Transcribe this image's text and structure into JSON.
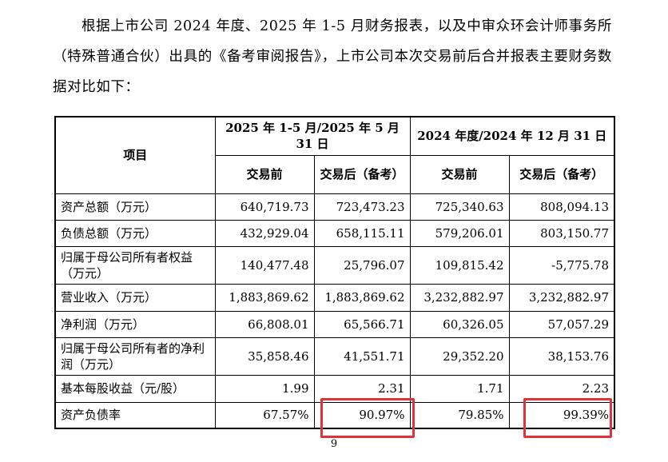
{
  "intro": "根据上市公司 2024 年度、2025 年 1-5 月财务报表，以及中审众环会计师事务所（特殊普通合伙）出具的《备考审阅报告》，上市公司本次交易前后合并报表主要财务数据对比如下：",
  "table": {
    "item_header": "项目",
    "period1": "2025 年 1-5 月/2025 年 5 月 31 日",
    "period2": "2024 年度/2024 年 12 月 31 日",
    "before": "交易前",
    "after": "交易后（备考）",
    "rows": [
      {
        "label": "资产总额（万元）",
        "v": [
          "640,719.73",
          "723,473.23",
          "725,340.63",
          "808,094.13"
        ]
      },
      {
        "label": "负债总额（万元）",
        "v": [
          "432,929.04",
          "658,115.11",
          "579,206.01",
          "803,150.77"
        ]
      },
      {
        "label": "归属于母公司所有者权益（万元）",
        "v": [
          "140,477.48",
          "25,796.07",
          "109,815.42",
          "-5,775.78"
        ]
      },
      {
        "label": "营业收入（万元）",
        "v": [
          "1,883,869.62",
          "1,883,869.62",
          "3,232,882.97",
          "3,232,882.97"
        ]
      },
      {
        "label": "净利润（万元）",
        "v": [
          "66,808.01",
          "65,566.71",
          "60,326.05",
          "57,057.29"
        ]
      },
      {
        "label": "归属于母公司所有者的净利润（万元）",
        "v": [
          "35,858.46",
          "41,551.71",
          "29,352.20",
          "38,153.76"
        ]
      },
      {
        "label": "基本每股收益（元/股）",
        "v": [
          "1.99",
          "2.31",
          "1.71",
          "2.23"
        ]
      },
      {
        "label": "资产负债率",
        "v": [
          "67.57%",
          "90.97%",
          "79.85%",
          "99.39%"
        ]
      }
    ]
  },
  "page_number": "9",
  "highlight_color": "#e0323a"
}
